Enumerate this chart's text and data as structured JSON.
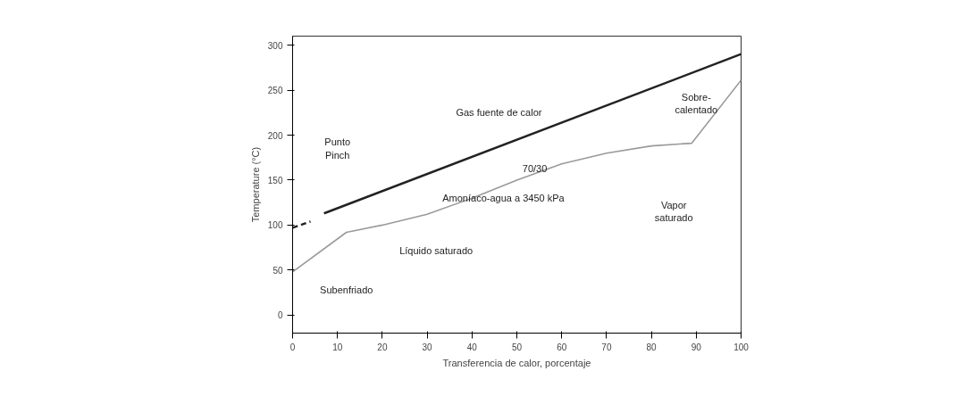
{
  "chart_data": {
    "type": "line",
    "xlabel": "Transferencia de calor, porcentaje",
    "ylabel": "Temperature (°C)",
    "xlim": [
      0,
      100
    ],
    "ylim": [
      -20,
      310
    ],
    "xticks": [
      0,
      10,
      20,
      30,
      40,
      50,
      60,
      70,
      80,
      90,
      100
    ],
    "yticks": [
      0,
      50,
      100,
      150,
      200,
      250,
      300
    ],
    "grid": false,
    "series": [
      {
        "color": "#222222",
        "x": [
          7,
          100
        ],
        "values": [
          113,
          290
        ],
        "line_style": "solid"
      },
      {
        "color": "#222222",
        "x": [
          0,
          4
        ],
        "values": [
          97,
          104
        ],
        "line_style": "dashed"
      },
      {
        "color": "#9a9a9a",
        "x": [
          0,
          12,
          20,
          30,
          40,
          50,
          60,
          70,
          80,
          89,
          100
        ],
        "values": [
          48,
          92,
          100,
          112,
          130,
          150,
          168,
          180,
          188,
          191,
          261
        ],
        "line_style": "solid"
      }
    ],
    "annotations": [
      "Gas fuente de calor",
      "70/30",
      "Amoníaco-agua a 3450 kPa",
      "Punto\nPinch",
      "Líquido saturado",
      "Subenfriado",
      "Vapor\nsaturado",
      "Sobre-\ncalentado"
    ]
  }
}
